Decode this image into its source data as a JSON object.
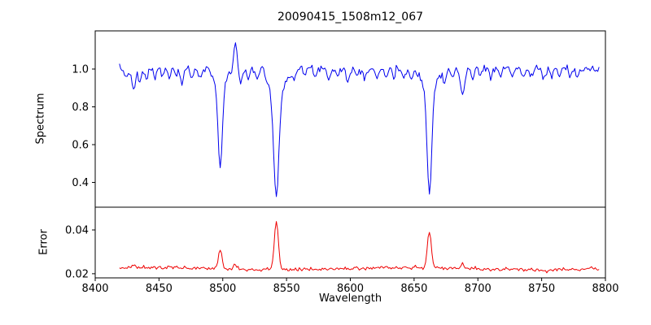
{
  "chart_data": {
    "type": "line",
    "title": "20090415_1508m12_067",
    "xlabel": "Wavelength",
    "xlim": [
      8400,
      8800
    ],
    "x_range": [
      8419,
      8795
    ],
    "x_step": 1,
    "seed": 7,
    "xticks": [
      8400,
      8450,
      8500,
      8550,
      8600,
      8650,
      8700,
      8750,
      8800
    ],
    "xtick_labels": [
      "8400",
      "8450",
      "8500",
      "8550",
      "8600",
      "8650",
      "8700",
      "8750",
      "8800"
    ],
    "grid": false,
    "legend": "none",
    "panels": [
      {
        "name": "spectrum",
        "ylabel": "Spectrum",
        "color": "#0000ee",
        "ylim": [
          0.269,
          1.202
        ],
        "yticks": [
          0.4,
          0.6,
          0.8,
          1.0
        ],
        "ytick_labels": [
          "0.4",
          "0.6",
          "0.8",
          "1.0"
        ],
        "continuum": 1.0,
        "noise_sigma": 0.009,
        "absorption_lines": [
          [
            8424,
            0.05,
            1.2
          ],
          [
            8430,
            0.12,
            1.5
          ],
          [
            8435,
            0.08,
            1.2
          ],
          [
            8440,
            0.06,
            1.2
          ],
          [
            8447,
            0.05,
            1.2
          ],
          [
            8453,
            0.04,
            1.0
          ],
          [
            8458,
            0.05,
            1.0
          ],
          [
            8464,
            0.04,
            1.0
          ],
          [
            8468,
            0.08,
            1.3
          ],
          [
            8476,
            0.05,
            1.0
          ],
          [
            8482,
            0.04,
            1.0
          ],
          [
            8498,
            0.42,
            1.6
          ],
          [
            8498,
            0.1,
            4.0
          ],
          [
            8514,
            0.07,
            1.2
          ],
          [
            8520,
            0.05,
            1.0
          ],
          [
            8527,
            0.04,
            1.0
          ],
          [
            8542,
            0.55,
            2.0
          ],
          [
            8542,
            0.13,
            6.0
          ],
          [
            8556,
            0.05,
            1.2
          ],
          [
            8564,
            0.04,
            1.0
          ],
          [
            8572,
            0.04,
            1.0
          ],
          [
            8583,
            0.06,
            1.2
          ],
          [
            8590,
            0.04,
            1.0
          ],
          [
            8598,
            0.07,
            1.3
          ],
          [
            8605,
            0.04,
            1.0
          ],
          [
            8611,
            0.05,
            1.0
          ],
          [
            8621,
            0.05,
            1.0
          ],
          [
            8628,
            0.04,
            1.0
          ],
          [
            8634,
            0.05,
            1.0
          ],
          [
            8642,
            0.04,
            1.0
          ],
          [
            8648,
            0.05,
            1.0
          ],
          [
            8662,
            0.56,
            1.8
          ],
          [
            8662,
            0.1,
            5.0
          ],
          [
            8674,
            0.06,
            1.2
          ],
          [
            8680,
            0.05,
            1.0
          ],
          [
            8688,
            0.14,
            1.6
          ],
          [
            8696,
            0.05,
            1.0
          ],
          [
            8702,
            0.04,
            1.0
          ],
          [
            8710,
            0.05,
            1.0
          ],
          [
            8718,
            0.04,
            1.0
          ],
          [
            8727,
            0.05,
            1.0
          ],
          [
            8736,
            0.06,
            1.2
          ],
          [
            8742,
            0.04,
            1.0
          ],
          [
            8752,
            0.06,
            1.2
          ],
          [
            8758,
            0.04,
            1.0
          ],
          [
            8764,
            0.05,
            1.0
          ],
          [
            8772,
            0.04,
            1.0
          ],
          [
            8778,
            0.04,
            1.0
          ]
        ],
        "emission_features": [
          [
            8510,
            0.15,
            1.2
          ],
          [
            8531,
            0.05,
            1.0
          ]
        ],
        "strong_line_centers": [
          8498,
          8542,
          8662
        ],
        "strong_line_minima": [
          0.48,
          0.33,
          0.34
        ]
      },
      {
        "name": "error",
        "ylabel": "Error",
        "color": "#ee0000",
        "ylim": [
          0.0181,
          0.0504
        ],
        "yticks": [
          0.02,
          0.04
        ],
        "ytick_labels": [
          "0.02",
          "0.04"
        ],
        "baseline": 0.0223,
        "noise_sigma": 0.0004,
        "peaks": [
          [
            8430,
            0.0015,
            1.5
          ],
          [
            8498,
            0.0085,
            1.5
          ],
          [
            8510,
            0.002,
            1.5
          ],
          [
            8542,
            0.0225,
            1.6
          ],
          [
            8662,
            0.0165,
            1.5
          ],
          [
            8688,
            0.0018,
            1.5
          ]
        ]
      }
    ]
  }
}
